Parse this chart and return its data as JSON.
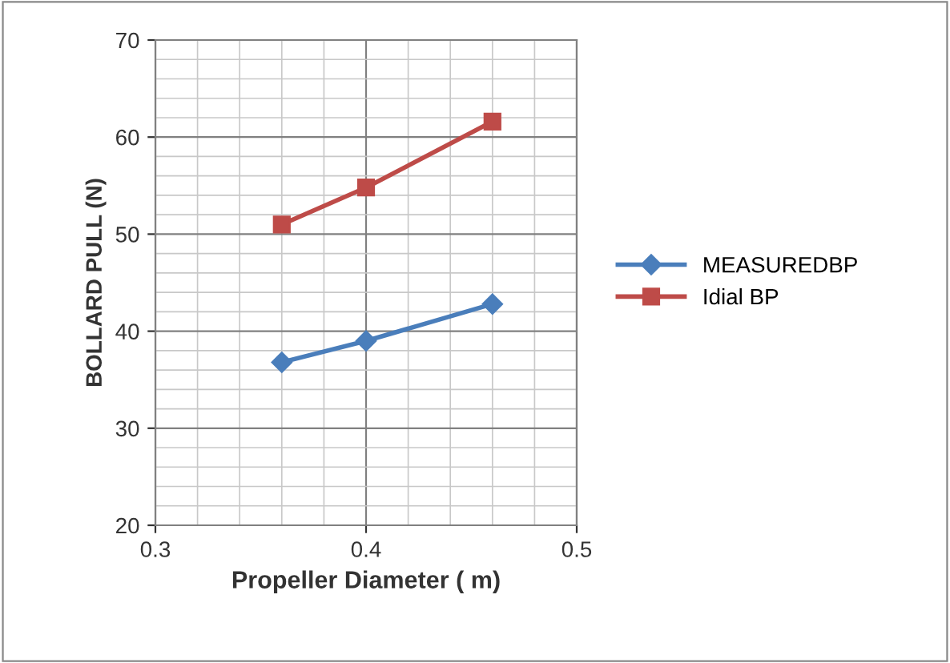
{
  "chart_data": {
    "type": "line",
    "xlabel": "Propeller Diameter ( m)",
    "ylabel": "BOLLARD PULL (N)",
    "x": [
      0.36,
      0.4,
      0.46
    ],
    "series": [
      {
        "name": "MEASUREDBP",
        "color": "#4a7ebb",
        "marker": "diamond",
        "values": [
          36.8,
          39.0,
          42.8
        ]
      },
      {
        "name": "Idial BP",
        "color": "#be4b48",
        "marker": "square",
        "values": [
          51.0,
          54.8,
          61.6
        ]
      }
    ],
    "xlim": [
      0.3,
      0.5
    ],
    "xticks": [
      0.3,
      0.4,
      0.5
    ],
    "ylim": [
      20,
      70
    ],
    "yticks": [
      20,
      30,
      40,
      50,
      60,
      70
    ],
    "grid": true,
    "legend": "right",
    "line_style": "solid"
  }
}
